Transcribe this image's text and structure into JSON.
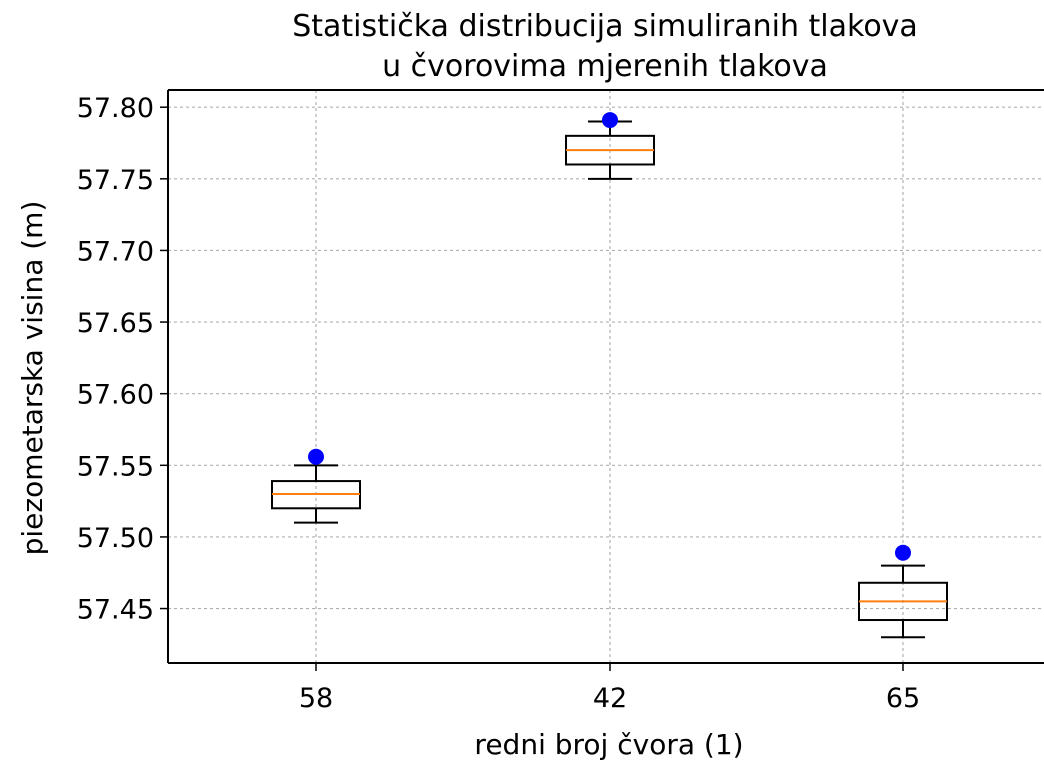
{
  "chart_data": {
    "type": "boxplot",
    "title": [
      "Statistička distribucija simuliranih tlakova",
      "u čvorovima mjerenih tlakova"
    ],
    "xlabel": "redni broj čvora (1)",
    "ylabel": "piezometarska visina (m)",
    "ylim": [
      57.412,
      57.812
    ],
    "yticks": [
      "57.45",
      "57.50",
      "57.55",
      "57.60",
      "57.65",
      "57.70",
      "57.75",
      "57.80"
    ],
    "grid": true,
    "categories": [
      "58",
      "42",
      "65"
    ],
    "boxes": [
      {
        "category": "58",
        "whisker_low": 57.51,
        "q1": 57.52,
        "median": 57.53,
        "q3": 57.539,
        "whisker_high": 57.55,
        "measured": 57.556
      },
      {
        "category": "42",
        "whisker_low": 57.75,
        "q1": 57.76,
        "median": 57.77,
        "q3": 57.78,
        "whisker_high": 57.79,
        "measured": 57.791
      },
      {
        "category": "65",
        "whisker_low": 57.43,
        "q1": 57.442,
        "median": 57.455,
        "q3": 57.468,
        "whisker_high": 57.48,
        "measured": 57.489
      }
    ],
    "colors": {
      "box": "#000000",
      "median": "#ff7f0e",
      "measured": "#0000ff",
      "grid": "#b0b0b0"
    }
  }
}
